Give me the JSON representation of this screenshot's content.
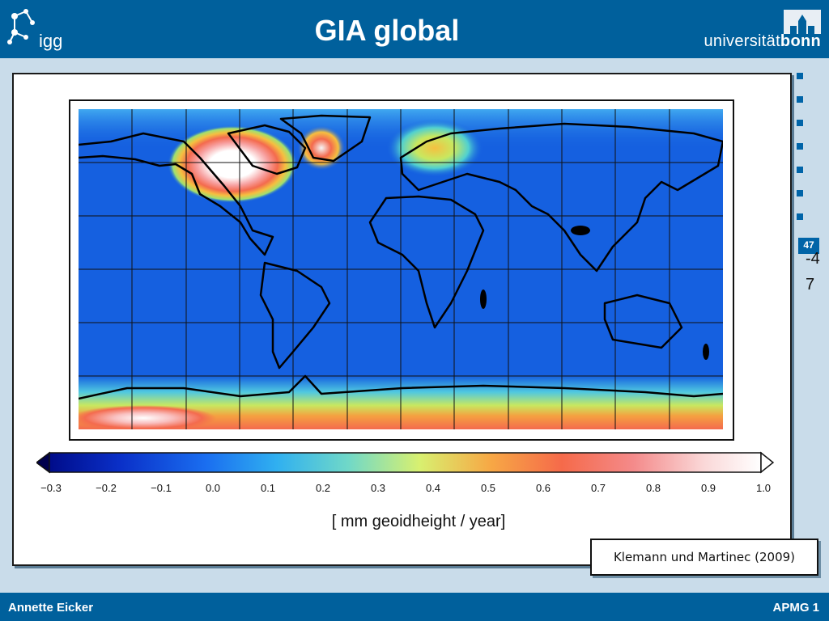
{
  "header": {
    "title": "GIA global",
    "left_logo_text": "igg",
    "right_logo_text_a": "universität",
    "right_logo_text_b": "bonn"
  },
  "slide": {
    "page_number": "47",
    "page_number_overlay": "-4 7"
  },
  "map": {
    "description_colors": {
      "ocean": "#1560e0",
      "low": "#00008b",
      "high": "#ffffff",
      "accent": "#00609c"
    },
    "colorbar": {
      "ticks": [
        "−0.3",
        "−0.2",
        "−0.1",
        "0.0",
        "0.1",
        "0.2",
        "0.3",
        "0.4",
        "0.5",
        "0.6",
        "0.7",
        "0.8",
        "0.9",
        "1.0"
      ],
      "unit_label": "[ mm geoidheight / year]"
    }
  },
  "citation": "Klemann und Martinec (2009)",
  "footer": {
    "author": "Annette Eicker",
    "course": "APMG 1"
  }
}
